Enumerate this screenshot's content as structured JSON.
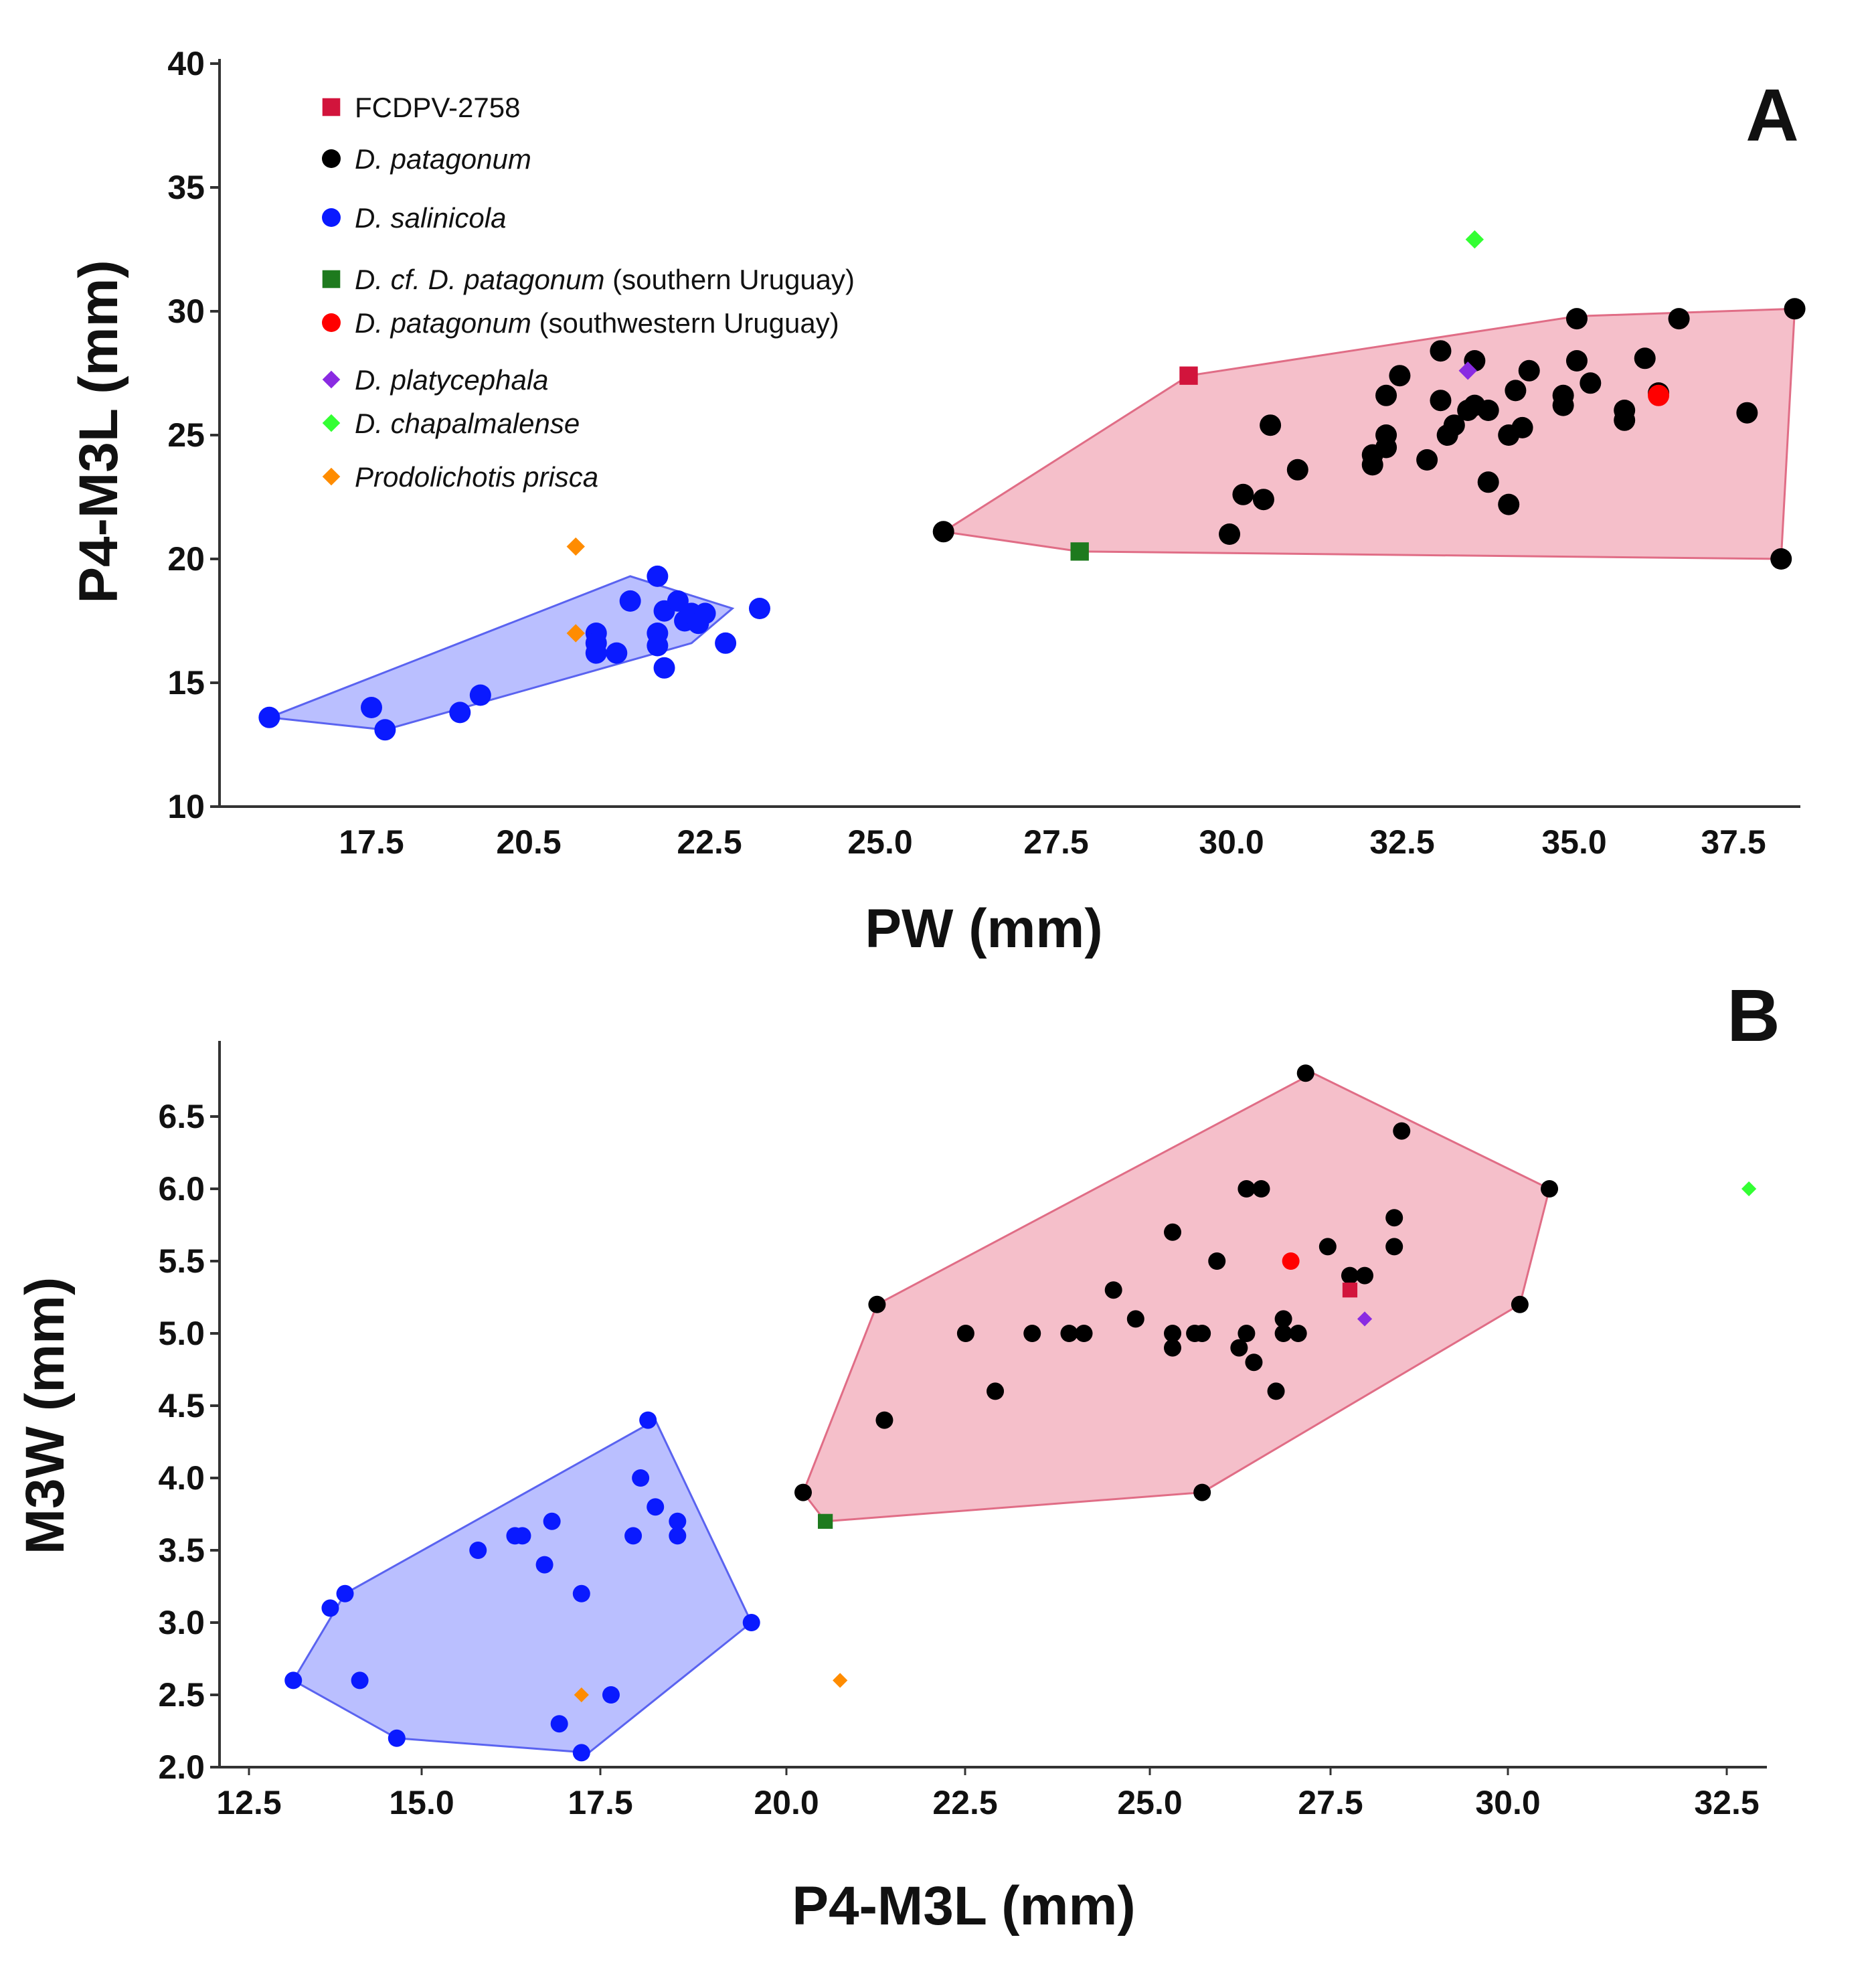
{
  "legend": [
    {
      "key": "fcdpv",
      "label": "FCDPV-2758",
      "italic": "",
      "rest": "FCDPV-2758",
      "shape": "square",
      "color": "#d2143c"
    },
    {
      "key": "patagonum",
      "label": "D. patagonum",
      "italic": "D. patagonum",
      "rest": "",
      "shape": "circle",
      "color": "#000000"
    },
    {
      "key": "salinicola",
      "label": "D. salinicola",
      "italic": "D. salinicola",
      "rest": "",
      "shape": "circle",
      "color": "#0a1aff"
    },
    {
      "key": "cf_patagonum",
      "label": "D. cf. D. patagonum (southern Uruguay)",
      "italic": "D. cf. D. patagonum",
      "rest": " (southern Uruguay)",
      "shape": "square",
      "color": "#1e7a1e"
    },
    {
      "key": "patagonum_sw",
      "label": "D. patagonum (southwestern Uruguay)",
      "italic": "D. patagonum",
      "rest": " (southwestern Uruguay)",
      "shape": "circle",
      "color": "#ff0000"
    },
    {
      "key": "platycephala",
      "label": "D. platycephala",
      "italic": "D. platycephala",
      "rest": "",
      "shape": "diamond",
      "color": "#8a2be2"
    },
    {
      "key": "chapalmalense",
      "label": "D. chapalmalense",
      "italic": "D. chapalmalense",
      "rest": "",
      "shape": "diamond",
      "color": "#33ff33"
    },
    {
      "key": "prisca",
      "label": "Prodolichotis prisca",
      "italic": "Prodolichotis prisca",
      "rest": "",
      "shape": "diamond",
      "color": "#ff8c00"
    }
  ],
  "colors": {
    "pink_fill": "#f4b8c4",
    "pink_stroke": "#e06d86",
    "blue_fill": "#b3b8ff",
    "blue_stroke": "#5a63f0"
  },
  "chart_data": [
    {
      "panel": "A",
      "type": "scatter",
      "xlabel": "PW (mm)",
      "ylabel": "P4-M3L (mm)",
      "xlim": [
        15.2,
        38.5
      ],
      "ylim": [
        10,
        40
      ],
      "xticks": [
        "17.5",
        "20.5",
        "22.5",
        "25.0",
        "27.5",
        "30.0",
        "32.5",
        "35.0",
        "37.5"
      ],
      "yticks": [
        "10",
        "15",
        "20",
        "25",
        "30",
        "35",
        "40"
      ],
      "hulls": [
        {
          "group": "patagonum",
          "color": "pink",
          "points": [
            [
              25.9,
              21.1
            ],
            [
              29.5,
              27.4
            ],
            [
              35.2,
              29.8
            ],
            [
              38.4,
              30.1
            ],
            [
              38.2,
              20.0
            ],
            [
              27.9,
              20.3
            ]
          ]
        },
        {
          "group": "salinicola",
          "color": "blue",
          "points": [
            [
              16.0,
              13.6
            ],
            [
              17.7,
              13.1
            ],
            [
              22.2,
              16.6
            ],
            [
              22.8,
              18.0
            ],
            [
              21.3,
              19.3
            ]
          ]
        }
      ],
      "series": [
        {
          "key": "patagonum",
          "points": [
            [
              25.9,
              21.1
            ],
            [
              30.1,
              21.0
            ],
            [
              30.3,
              22.6
            ],
            [
              30.6,
              22.4
            ],
            [
              30.7,
              25.4
            ],
            [
              31.1,
              23.6
            ],
            [
              32.2,
              23.8
            ],
            [
              32.2,
              24.2
            ],
            [
              32.4,
              24.5
            ],
            [
              32.4,
              25.0
            ],
            [
              32.4,
              26.6
            ],
            [
              32.6,
              27.4
            ],
            [
              33.0,
              24.0
            ],
            [
              33.2,
              26.4
            ],
            [
              33.2,
              28.4
            ],
            [
              33.3,
              25.0
            ],
            [
              33.4,
              25.4
            ],
            [
              33.6,
              26.0
            ],
            [
              33.7,
              26.2
            ],
            [
              33.7,
              28.0
            ],
            [
              33.9,
              26.0
            ],
            [
              33.9,
              23.1
            ],
            [
              34.2,
              22.2
            ],
            [
              34.2,
              25.0
            ],
            [
              34.3,
              26.8
            ],
            [
              34.4,
              25.3
            ],
            [
              34.5,
              27.6
            ],
            [
              35.0,
              26.2
            ],
            [
              35.0,
              26.6
            ],
            [
              35.2,
              28.0
            ],
            [
              35.2,
              29.7
            ],
            [
              35.4,
              27.1
            ],
            [
              35.9,
              25.6
            ],
            [
              35.9,
              26.0
            ],
            [
              36.2,
              28.1
            ],
            [
              36.4,
              26.7
            ],
            [
              36.7,
              29.7
            ],
            [
              37.7,
              25.9
            ],
            [
              38.2,
              20.0
            ],
            [
              38.4,
              30.1
            ]
          ]
        },
        {
          "key": "salinicola",
          "points": [
            [
              16.0,
              13.6
            ],
            [
              17.5,
              14.0
            ],
            [
              17.7,
              13.1
            ],
            [
              18.8,
              13.8
            ],
            [
              19.1,
              14.5
            ],
            [
              20.8,
              17.0
            ],
            [
              20.8,
              16.6
            ],
            [
              20.8,
              16.2
            ],
            [
              21.1,
              16.2
            ],
            [
              21.3,
              18.3
            ],
            [
              21.7,
              19.3
            ],
            [
              21.7,
              17.0
            ],
            [
              21.7,
              16.5
            ],
            [
              21.8,
              17.9
            ],
            [
              21.8,
              15.6
            ],
            [
              22.0,
              18.3
            ],
            [
              22.1,
              17.5
            ],
            [
              22.2,
              17.8
            ],
            [
              22.3,
              17.4
            ],
            [
              22.4,
              17.8
            ],
            [
              22.7,
              16.6
            ],
            [
              23.2,
              18.0
            ]
          ]
        },
        {
          "key": "fcdpv",
          "points": [
            [
              29.5,
              27.4
            ]
          ]
        },
        {
          "key": "cf_patagonum",
          "points": [
            [
              27.9,
              20.3
            ]
          ]
        },
        {
          "key": "patagonum_sw",
          "points": [
            [
              36.4,
              26.6
            ]
          ]
        },
        {
          "key": "platycephala",
          "points": [
            [
              33.6,
              27.6
            ]
          ]
        },
        {
          "key": "chapalmalense",
          "points": [
            [
              33.7,
              32.9
            ]
          ]
        },
        {
          "key": "prisca",
          "points": [
            [
              20.5,
              20.5
            ],
            [
              20.5,
              17.0
            ]
          ]
        }
      ]
    },
    {
      "panel": "B",
      "type": "scatter",
      "xlabel": "P4-M3L (mm)",
      "ylabel": "M3W (mm)",
      "xlim": [
        12.5,
        32.8
      ],
      "ylim": [
        2.0,
        7.0
      ],
      "xticks": [
        "12.5",
        "15.0",
        "17.5",
        "20.0",
        "22.5",
        "25.0",
        "27.5",
        "30.0",
        "32.5"
      ],
      "yticks": [
        "2.0",
        "2.5",
        "3.0",
        "3.5",
        "4.0",
        "4.5",
        "5.0",
        "5.5",
        "6.0",
        "6.5"
      ],
      "hulls": [
        {
          "group": "patagonum",
          "color": "pink",
          "points": [
            [
              20.0,
              3.9
            ],
            [
              21.0,
              5.2
            ],
            [
              26.9,
              6.8
            ],
            [
              30.1,
              6.0
            ],
            [
              29.7,
              5.2
            ],
            [
              25.4,
              3.9
            ],
            [
              20.3,
              3.7
            ]
          ]
        },
        {
          "group": "salinicola",
          "color": "blue",
          "points": [
            [
              13.1,
              2.6
            ],
            [
              13.8,
              3.2
            ],
            [
              18.0,
              4.4
            ],
            [
              19.3,
              3.0
            ],
            [
              17.1,
              2.1
            ],
            [
              14.5,
              2.2
            ]
          ]
        }
      ],
      "series": [
        {
          "key": "patagonum",
          "points": [
            [
              20.0,
              3.9
            ],
            [
              21.0,
              5.2
            ],
            [
              21.1,
              4.4
            ],
            [
              22.2,
              5.0
            ],
            [
              22.6,
              4.6
            ],
            [
              23.1,
              5.0
            ],
            [
              23.6,
              5.0
            ],
            [
              23.8,
              5.0
            ],
            [
              24.2,
              5.3
            ],
            [
              24.5,
              5.1
            ],
            [
              25.0,
              5.7
            ],
            [
              25.0,
              5.0
            ],
            [
              25.0,
              4.9
            ],
            [
              25.3,
              5.0
            ],
            [
              25.4,
              5.0
            ],
            [
              25.4,
              3.9
            ],
            [
              25.6,
              5.5
            ],
            [
              25.9,
              4.9
            ],
            [
              26.0,
              6.0
            ],
            [
              26.0,
              5.0
            ],
            [
              26.1,
              4.8
            ],
            [
              26.2,
              6.0
            ],
            [
              26.4,
              4.6
            ],
            [
              26.5,
              5.1
            ],
            [
              26.5,
              5.0
            ],
            [
              26.7,
              5.0
            ],
            [
              26.8,
              6.8
            ],
            [
              27.1,
              5.6
            ],
            [
              27.4,
              5.4
            ],
            [
              27.6,
              5.4
            ],
            [
              28.0,
              5.8
            ],
            [
              28.0,
              5.6
            ],
            [
              28.1,
              6.4
            ],
            [
              29.7,
              5.2
            ],
            [
              30.1,
              6.0
            ]
          ]
        },
        {
          "key": "salinicola",
          "points": [
            [
              13.1,
              2.6
            ],
            [
              13.6,
              3.1
            ],
            [
              13.8,
              3.2
            ],
            [
              14.0,
              2.6
            ],
            [
              14.5,
              2.2
            ],
            [
              15.6,
              3.5
            ],
            [
              16.1,
              3.6
            ],
            [
              16.2,
              3.6
            ],
            [
              16.5,
              3.4
            ],
            [
              16.6,
              3.7
            ],
            [
              16.7,
              2.3
            ],
            [
              17.0,
              3.2
            ],
            [
              17.0,
              2.1
            ],
            [
              17.4,
              2.5
            ],
            [
              17.7,
              3.6
            ],
            [
              17.8,
              4.0
            ],
            [
              17.9,
              4.4
            ],
            [
              18.0,
              3.8
            ],
            [
              18.3,
              3.7
            ],
            [
              18.3,
              3.6
            ],
            [
              19.3,
              3.0
            ]
          ]
        },
        {
          "key": "fcdpv",
          "points": [
            [
              27.4,
              5.3
            ]
          ]
        },
        {
          "key": "cf_patagonum",
          "points": [
            [
              20.3,
              3.7
            ]
          ]
        },
        {
          "key": "patagonum_sw",
          "points": [
            [
              26.6,
              5.5
            ]
          ]
        },
        {
          "key": "platycephala",
          "points": [
            [
              27.6,
              5.1
            ]
          ]
        },
        {
          "key": "chapalmalense",
          "points": [
            [
              32.8,
              6.0
            ]
          ]
        },
        {
          "key": "prisca",
          "points": [
            [
              17.0,
              2.5
            ],
            [
              20.5,
              2.6
            ]
          ]
        }
      ]
    }
  ]
}
